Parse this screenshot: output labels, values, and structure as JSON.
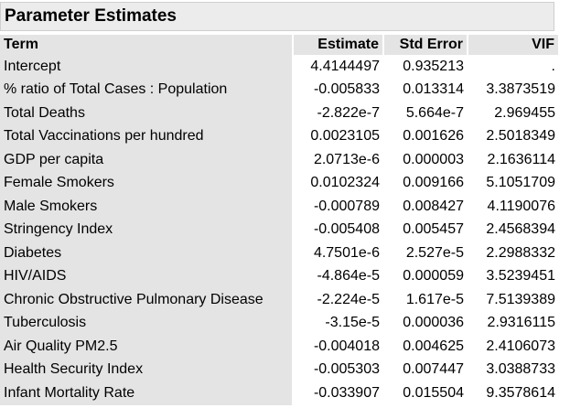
{
  "title": "Parameter Estimates",
  "columns": {
    "term": "Term",
    "estimate": "Estimate",
    "std_error": "Std Error",
    "vif": "VIF"
  },
  "rows": [
    {
      "term": "Intercept",
      "estimate": "4.4144497",
      "std_error": "0.935213",
      "vif": "."
    },
    {
      "term": "% ratio of Total Cases : Population",
      "estimate": "-0.005833",
      "std_error": "0.013314",
      "vif": "3.3873519"
    },
    {
      "term": "Total Deaths",
      "estimate": "-2.822e-7",
      "std_error": "5.664e-7",
      "vif": "2.969455"
    },
    {
      "term": "Total Vaccinations per hundred",
      "estimate": "0.0023105",
      "std_error": "0.001626",
      "vif": "2.5018349"
    },
    {
      "term": "GDP per capita",
      "estimate": "2.0713e-6",
      "std_error": "0.000003",
      "vif": "2.1636114"
    },
    {
      "term": "Female Smokers",
      "estimate": "0.0102324",
      "std_error": "0.009166",
      "vif": "5.1051709"
    },
    {
      "term": "Male Smokers",
      "estimate": "-0.000789",
      "std_error": "0.008427",
      "vif": "4.1190076"
    },
    {
      "term": "Stringency Index",
      "estimate": "-0.005408",
      "std_error": "0.005457",
      "vif": "2.4568394"
    },
    {
      "term": "Diabetes",
      "estimate": "4.7501e-6",
      "std_error": "2.527e-5",
      "vif": "2.2988332"
    },
    {
      "term": "HIV/AIDS",
      "estimate": "-4.864e-5",
      "std_error": "0.000059",
      "vif": "3.5239451"
    },
    {
      "term": "Chronic Obstructive Pulmonary Disease",
      "estimate": "-2.224e-5",
      "std_error": "1.617e-5",
      "vif": "7.5139389"
    },
    {
      "term": "Tuberculosis",
      "estimate": "-3.15e-5",
      "std_error": "0.000036",
      "vif": "2.9316115"
    },
    {
      "term": "Air Quality PM2.5",
      "estimate": "-0.004018",
      "std_error": "0.004625",
      "vif": "2.4106073"
    },
    {
      "term": "Health Security Index",
      "estimate": "-0.005303",
      "std_error": "0.007447",
      "vif": "3.0388733"
    },
    {
      "term": "Infant Mortality Rate",
      "estimate": "-0.033907",
      "std_error": "0.015504",
      "vif": "9.3578614"
    }
  ]
}
